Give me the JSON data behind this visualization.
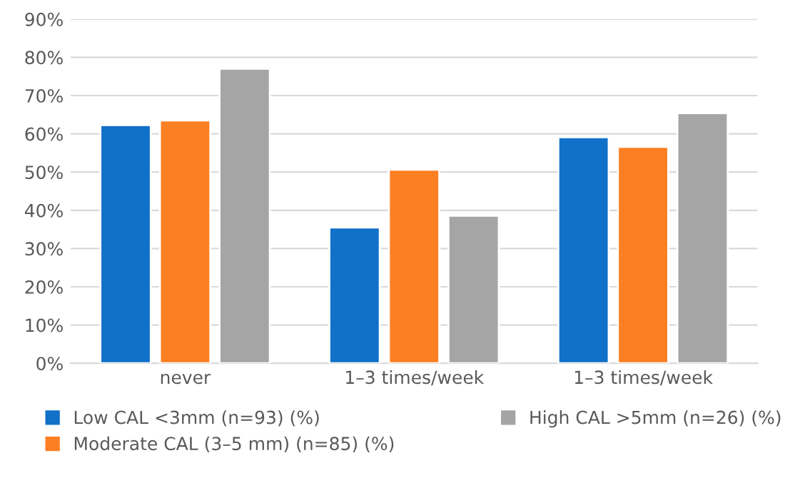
{
  "chart_data": {
    "type": "bar",
    "categories": [
      "never",
      "1–3 times/week",
      "1–3 times/week"
    ],
    "series": [
      {
        "name": "Low CAL <3mm (n=93) (%)",
        "color": "#1170c8",
        "values": [
          62.3,
          35.5,
          59.1
        ]
      },
      {
        "name": "Moderate CAL (3–5 mm) (n=85) (%)",
        "color": "#fd7f23",
        "values": [
          63.5,
          50.6,
          56.6
        ]
      },
      {
        "name": "High CAL >5mm (n=26) (%)",
        "color": "#a5a5a5",
        "values": [
          77.0,
          38.6,
          65.4
        ]
      }
    ],
    "ylim": [
      0,
      90
    ],
    "yticks": [
      {
        "value": 0,
        "label": "0%"
      },
      {
        "value": 10,
        "label": "10%"
      },
      {
        "value": 20,
        "label": "20%"
      },
      {
        "value": 30,
        "label": "30%"
      },
      {
        "value": 40,
        "label": "40%"
      },
      {
        "value": 50,
        "label": "50%"
      },
      {
        "value": 60,
        "label": "60%"
      },
      {
        "value": 70,
        "label": "70%"
      },
      {
        "value": 80,
        "label": "80%"
      },
      {
        "value": 90,
        "label": "90%"
      }
    ],
    "grid": "y",
    "legend": "bottom"
  }
}
